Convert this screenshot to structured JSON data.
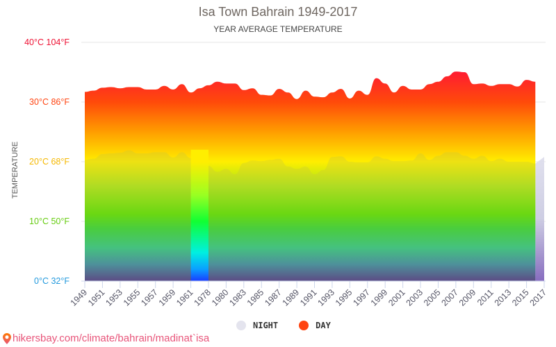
{
  "header": {
    "title": "Isa Town Bahrain 1949-2017",
    "subtitle": "YEAR AVERAGE TEMPERATURE"
  },
  "yaxis": {
    "label": "TEMPERATURE",
    "ticks": [
      {
        "label": "40°C 104°F",
        "value": 40,
        "color": "#ee1133"
      },
      {
        "label": "30°C 86°F",
        "value": 30,
        "color": "#ff4411"
      },
      {
        "label": "20°C 68°F",
        "value": 20,
        "color": "#f5b800"
      },
      {
        "label": "10°C 50°F",
        "value": 10,
        "color": "#66cc11"
      },
      {
        "label": "0°C 32°F",
        "value": 0,
        "color": "#2299dd"
      }
    ]
  },
  "legend": {
    "items": [
      {
        "label": "NIGHT",
        "color": "#e4e4ee"
      },
      {
        "label": "DAY",
        "color": "#ff4411"
      }
    ]
  },
  "footer": {
    "link_text": "hikersbay.com/climate/bahrain/madinat`isa",
    "icon": "map-pin-icon"
  },
  "chart_data": {
    "type": "area",
    "title": "Isa Town Bahrain 1949-2017",
    "subtitle": "YEAR AVERAGE TEMPERATURE",
    "xlabel": "",
    "ylabel": "TEMPERATURE",
    "ylim": [
      0,
      40
    ],
    "grid": true,
    "legend_position": "bottom",
    "x_tick_labels": [
      "1949",
      "1951",
      "1953",
      "1955",
      "1957",
      "1959",
      "1961",
      "1978",
      "1980",
      "1983",
      "1985",
      "1987",
      "1989",
      "1991",
      "1993",
      "1995",
      "1997",
      "1999",
      "2001",
      "2003",
      "2005",
      "2007",
      "2009",
      "2011",
      "2013",
      "2015",
      "2017"
    ],
    "x": [
      1949,
      1950,
      1951,
      1952,
      1953,
      1954,
      1955,
      1956,
      1957,
      1958,
      1959,
      1960,
      1961,
      1962,
      1978,
      1979,
      1980,
      1982,
      1983,
      1984,
      1985,
      1986,
      1987,
      1988,
      1989,
      1990,
      1991,
      1992,
      1993,
      1994,
      1995,
      1996,
      1997,
      1998,
      1999,
      2000,
      2001,
      2002,
      2003,
      2004,
      2005,
      2006,
      2007,
      2008,
      2009,
      2010,
      2011,
      2012,
      2013,
      2014,
      2015,
      2016,
      2017
    ],
    "series": [
      {
        "name": "DAY",
        "values": [
          31.7,
          31.9,
          32.4,
          32.5,
          32.3,
          32.5,
          32.5,
          32.1,
          32.1,
          32.7,
          32.1,
          33.0,
          31.6,
          32.3,
          32.8,
          33.4,
          33.1,
          33.1,
          32.0,
          32.3,
          31.2,
          31.1,
          32.2,
          31.6,
          30.5,
          31.9,
          30.9,
          30.8,
          31.6,
          32.2,
          30.6,
          31.9,
          31.2,
          34.0,
          33.1,
          31.6,
          32.7,
          32.1,
          32.1,
          33.0,
          33.4,
          34.3,
          35.1,
          35.0,
          33.0,
          33.1,
          32.7,
          33.0,
          33.0,
          32.6,
          33.7,
          33.4,
          null
        ]
      },
      {
        "name": "NIGHT",
        "values": [
          20.3,
          20.5,
          21.3,
          21.4,
          21.5,
          21.9,
          21.4,
          21.4,
          21.6,
          21.6,
          20.7,
          21.6,
          20.6,
          null,
          19.3,
          18.3,
          18.8,
          17.9,
          19.8,
          20.2,
          20.1,
          20.3,
          20.5,
          19.2,
          18.8,
          19.2,
          17.9,
          18.6,
          20.8,
          20.9,
          20.0,
          19.9,
          19.9,
          20.9,
          20.5,
          20.1,
          20.1,
          20.2,
          21.4,
          20.3,
          21.0,
          21.6,
          21.6,
          21.0,
          20.5,
          21.0,
          20.1,
          20.5,
          20.0,
          20.0,
          20.0,
          19.7,
          20.8
        ]
      }
    ]
  }
}
